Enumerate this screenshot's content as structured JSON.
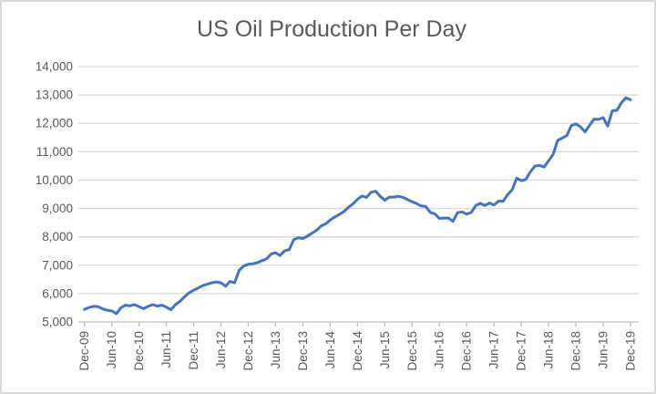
{
  "chart": {
    "background": "#FFFFFF",
    "border_color": "#D9D9D9"
  },
  "chart_data": {
    "type": "line",
    "title": "US Oil Production Per Day",
    "legend": "none",
    "grid": "horizontal",
    "line_color": "#4472C4",
    "gridline_color": "#D9D9D9",
    "axis_color": "#BFBFBF",
    "text_color": "#595959",
    "ylim": [
      5000,
      14000
    ],
    "y_step": 1000,
    "y_tick_labels": [
      "5,000",
      "6,000",
      "7,000",
      "8,000",
      "9,000",
      "10,000",
      "11,000",
      "12,000",
      "13,000",
      "14,000"
    ],
    "x_tick_labels": [
      "Dec-09",
      "Jun-10",
      "Dec-10",
      "Jun-11",
      "Dec-11",
      "Jun-12",
      "Dec-12",
      "Jun-13",
      "Dec-13",
      "Jun-14",
      "Dec-14",
      "Jun-15",
      "Dec-15",
      "Jun-16",
      "Dec-16",
      "Jun-17",
      "Dec-17",
      "Jun-18",
      "Dec-18",
      "Jun-19",
      "Dec-19"
    ],
    "x_unit": "month",
    "x_start_label": "Dec-09",
    "x_end_label": "Dec-19",
    "values": [
      5440,
      5510,
      5550,
      5540,
      5460,
      5410,
      5390,
      5290,
      5500,
      5590,
      5570,
      5610,
      5540,
      5470,
      5550,
      5610,
      5560,
      5590,
      5520,
      5430,
      5610,
      5730,
      5890,
      6030,
      6120,
      6200,
      6280,
      6330,
      6380,
      6410,
      6380,
      6260,
      6430,
      6380,
      6820,
      6970,
      7030,
      7050,
      7090,
      7160,
      7220,
      7390,
      7440,
      7340,
      7510,
      7550,
      7900,
      7970,
      7940,
      8020,
      8130,
      8230,
      8380,
      8460,
      8590,
      8700,
      8790,
      8890,
      9040,
      9160,
      9320,
      9440,
      9390,
      9570,
      9610,
      9430,
      9290,
      9400,
      9400,
      9430,
      9390,
      9310,
      9240,
      9170,
      9090,
      9070,
      8860,
      8810,
      8650,
      8660,
      8660,
      8550,
      8850,
      8880,
      8800,
      8860,
      9100,
      9180,
      9100,
      9190,
      9120,
      9260,
      9250,
      9490,
      9660,
      10070,
      9980,
      10020,
      10290,
      10490,
      10520,
      10460,
      10680,
      10910,
      11400,
      11480,
      11570,
      11920,
      11980,
      11880,
      11700,
      11930,
      12150,
      12140,
      12200,
      11900,
      12440,
      12460,
      12720,
      12900,
      12830
    ]
  }
}
